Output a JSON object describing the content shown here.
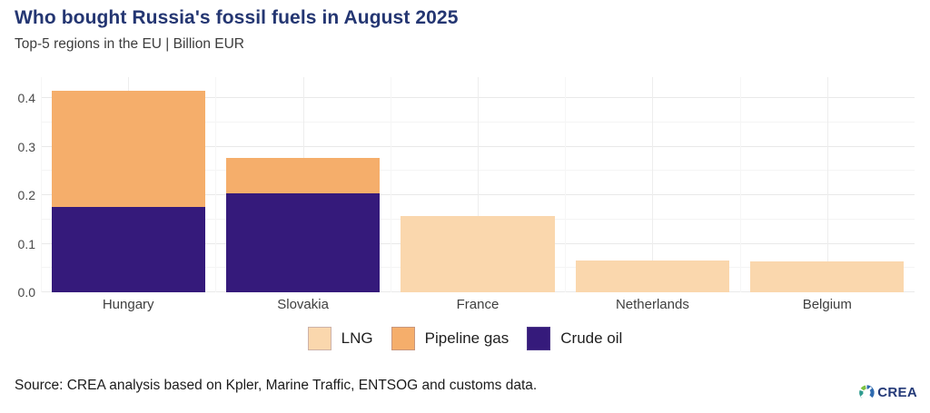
{
  "header": {
    "title": "Who bought Russia's fossil fuels in August 2025",
    "subtitle": "Top-5 regions in the EU | Billion EUR"
  },
  "footer": {
    "source": "Source: CREA analysis based on Kpler, Marine Traffic, ENTSOG and customs data.",
    "logo_text": "CREA"
  },
  "colors": {
    "title": "#243672",
    "lng": "#FAD7AD",
    "pipeline_gas": "#F5AE6B",
    "crude_oil": "#351A7B",
    "grid_major": "#e9e9e9",
    "grid_minor": "#f4f4f4",
    "logo_blue": "#2f6bb0",
    "logo_green": "#7dc242",
    "logo_teal": "#2e9b8f"
  },
  "chart_data": {
    "type": "bar",
    "stacked": true,
    "title": "Who bought Russia's fossil fuels in August 2025",
    "subtitle": "Top-5 regions in the EU | Billion EUR",
    "xlabel": "",
    "ylabel": "Billion EUR",
    "categories": [
      "Hungary",
      "Slovakia",
      "France",
      "Netherlands",
      "Belgium"
    ],
    "series": [
      {
        "name": "Crude oil",
        "color": "#351A7B",
        "values": [
          0.175,
          0.204,
          0,
          0,
          0
        ]
      },
      {
        "name": "Pipeline gas",
        "color": "#F5AE6B",
        "values": [
          0.24,
          0.073,
          0,
          0,
          0
        ]
      },
      {
        "name": "LNG",
        "color": "#FAD7AD",
        "values": [
          0,
          0,
          0.157,
          0.065,
          0.064
        ]
      }
    ],
    "totals": [
      0.415,
      0.277,
      0.157,
      0.065,
      0.064
    ],
    "yticks": [
      0.0,
      0.1,
      0.2,
      0.3,
      0.4
    ],
    "ylim": [
      0,
      0.443
    ],
    "grid": true,
    "legend_position": "bottom",
    "legend": [
      {
        "label": "LNG",
        "color": "#FAD7AD"
      },
      {
        "label": "Pipeline gas",
        "color": "#F5AE6B"
      },
      {
        "label": "Crude oil",
        "color": "#351A7B"
      }
    ]
  }
}
